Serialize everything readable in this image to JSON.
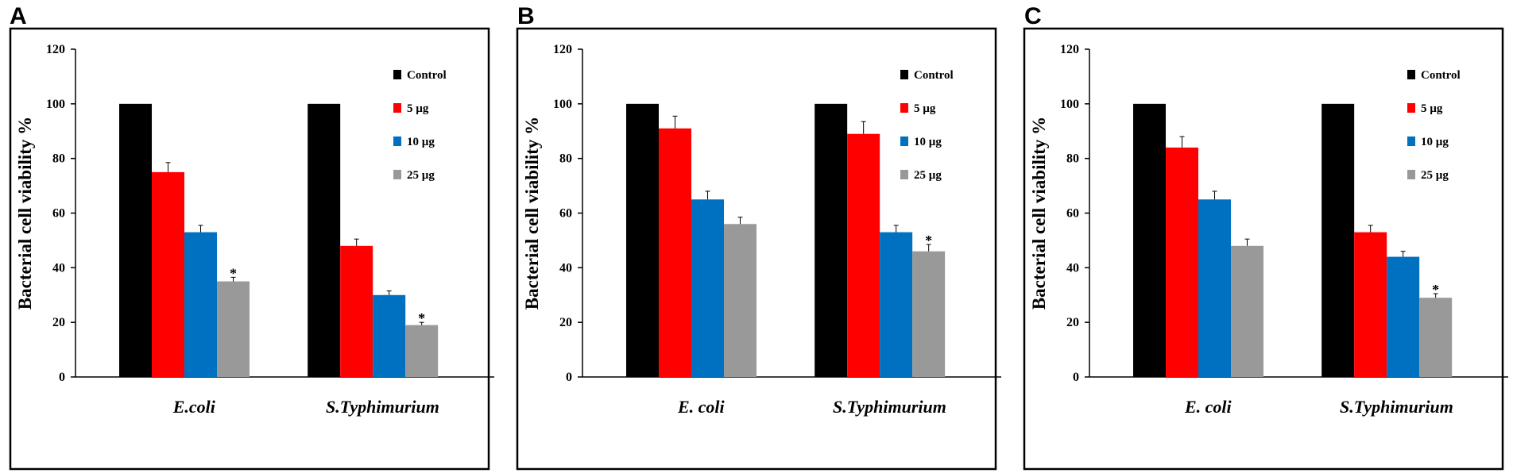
{
  "colors": {
    "Control": "#000000",
    "5 µg": "#ff0000",
    "10 µg": "#0070c0",
    "25 µg": "#999999",
    "frame": "#000000",
    "errorbar": "#000000"
  },
  "chart_data": [
    {
      "panel": "A",
      "type": "bar",
      "title": "",
      "xlabel": "",
      "ylabel": "Bacterial cell viability  %",
      "ylim": [
        0,
        120
      ],
      "yticks": [
        0,
        20,
        40,
        60,
        80,
        100,
        120
      ],
      "grid": false,
      "legend_position": "top-right",
      "categories": [
        "E.coli",
        "S.Typhimurium"
      ],
      "series": [
        {
          "name": "Control",
          "values": [
            100,
            100
          ],
          "errors": [
            0,
            0
          ],
          "significance": [
            "",
            ""
          ]
        },
        {
          "name": "5 µg",
          "values": [
            75,
            48
          ],
          "errors": [
            3.5,
            2.5
          ],
          "significance": [
            "",
            ""
          ]
        },
        {
          "name": "10 µg",
          "values": [
            53,
            30
          ],
          "errors": [
            2.5,
            1.5
          ],
          "significance": [
            "",
            ""
          ]
        },
        {
          "name": "25 µg",
          "values": [
            35,
            19
          ],
          "errors": [
            1.5,
            1
          ],
          "significance": [
            "*",
            "*"
          ]
        }
      ]
    },
    {
      "panel": "B",
      "type": "bar",
      "title": "",
      "xlabel": "",
      "ylabel": "Bacterial cell viability  %",
      "ylim": [
        0,
        120
      ],
      "yticks": [
        0,
        20,
        40,
        60,
        80,
        100,
        120
      ],
      "grid": false,
      "legend_position": "top-right",
      "categories": [
        "E. coli",
        "S.Typhimurium"
      ],
      "series": [
        {
          "name": "Control",
          "values": [
            100,
            100
          ],
          "errors": [
            0,
            0
          ],
          "significance": [
            "",
            ""
          ]
        },
        {
          "name": "5 µg",
          "values": [
            91,
            89
          ],
          "errors": [
            4.5,
            4.5
          ],
          "significance": [
            "",
            ""
          ]
        },
        {
          "name": "10 µg",
          "values": [
            65,
            53
          ],
          "errors": [
            3,
            2.5
          ],
          "significance": [
            "",
            ""
          ]
        },
        {
          "name": "25 µg",
          "values": [
            56,
            46
          ],
          "errors": [
            2.5,
            2.5
          ],
          "significance": [
            "",
            "*"
          ]
        }
      ]
    },
    {
      "panel": "C",
      "type": "bar",
      "title": "",
      "xlabel": "",
      "ylabel": "Bacterial cell viability  %",
      "ylim": [
        0,
        120
      ],
      "yticks": [
        0,
        20,
        40,
        60,
        80,
        100,
        120
      ],
      "grid": false,
      "legend_position": "top-right",
      "categories": [
        "E. coli",
        "S.Typhimurium"
      ],
      "series": [
        {
          "name": "Control",
          "values": [
            100,
            100
          ],
          "errors": [
            0,
            0
          ],
          "significance": [
            "",
            ""
          ]
        },
        {
          "name": "5 µg",
          "values": [
            84,
            53
          ],
          "errors": [
            4,
            2.5
          ],
          "significance": [
            "",
            ""
          ]
        },
        {
          "name": "10 µg",
          "values": [
            65,
            44
          ],
          "errors": [
            3,
            2
          ],
          "significance": [
            "",
            ""
          ]
        },
        {
          "name": "25 µg",
          "values": [
            48,
            29
          ],
          "errors": [
            2.5,
            1.5
          ],
          "significance": [
            "",
            "*"
          ]
        }
      ]
    }
  ]
}
